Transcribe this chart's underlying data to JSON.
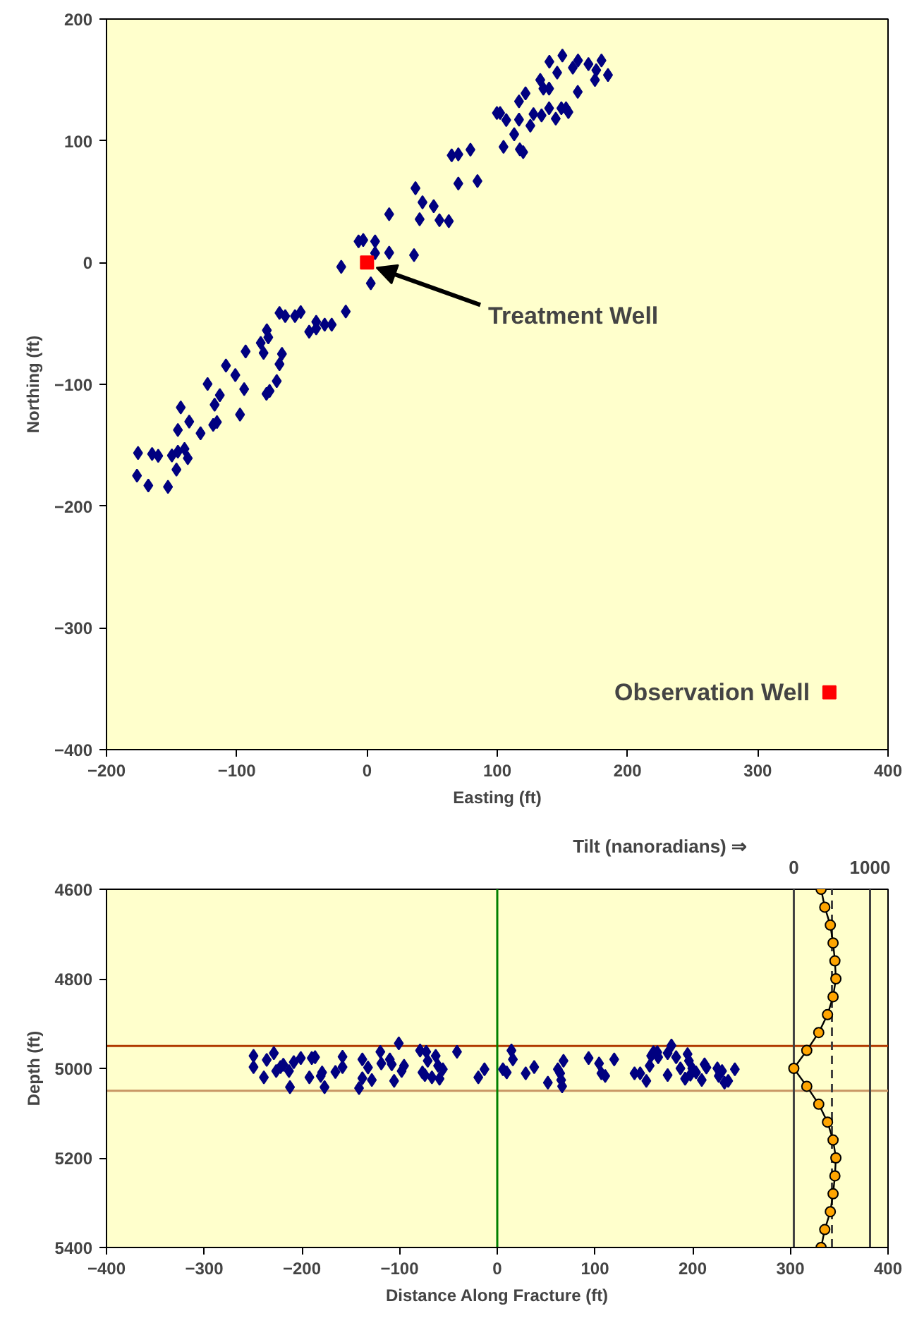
{
  "chart_data": [
    {
      "type": "scatter",
      "xlabel": "Easting (ft)",
      "ylabel": "Northing (ft)",
      "xlim": [
        -200,
        400
      ],
      "ylim": [
        -400,
        200
      ],
      "xticks": [
        -200,
        -100,
        0,
        100,
        200,
        300,
        400
      ],
      "yticks": [
        -400,
        -300,
        -200,
        -100,
        0,
        100,
        200
      ],
      "grid": false,
      "series": [
        {
          "color": "#000080",
          "marker": "diamond",
          "x": [
            -175.8,
            -176.6,
            -167.9,
            -165,
            -160.3,
            -152.8,
            -149.8,
            -146.3,
            -145.2,
            -140.1,
            -137.6,
            -145.2,
            -143,
            -136.5,
            -127.8,
            -122.4,
            -117,
            -118.1,
            -115.2,
            -113,
            -108.3,
            -101.1,
            -97.5,
            -94.3,
            -93.2,
            -79.4,
            -81.6,
            -76.9,
            -75.8,
            -69.3,
            -67.2,
            -65.3,
            -77.2,
            -74.8,
            -67.2,
            -62.8,
            -55.3,
            -50.9,
            -44.4,
            -39,
            -39,
            -32.5,
            -27.1,
            -16.3,
            -19.8,
            2.9,
            -6.5,
            -2.9,
            6.2,
            6.2,
            17,
            36.1,
            17,
            37.2,
            42.6,
            51.2,
            40.4,
            55.6,
            62.8,
            65,
            70.1,
            79.4,
            70.1,
            84.8,
            104.8,
            117.3,
            119.9,
            113,
            125.4,
            99.7,
            102.2,
            106.9,
            116.7,
            127.8,
            134,
            144.9,
            139.8,
            149.2,
            152.8,
            154.6,
            116.7,
            121.7,
            135.4,
            139.8,
            161.8,
            133,
            140,
            150,
            158,
            162,
            170,
            176,
            180,
            185,
            175,
            146
          ],
          "values": [
            -156.4,
            -175,
            -183.1,
            -157.2,
            -158.7,
            -184.2,
            -158.4,
            -170,
            -155.3,
            -153,
            -160.7,
            -137.5,
            -119,
            -130.6,
            -140.2,
            -99.7,
            -116.7,
            -133.3,
            -131,
            -108.9,
            -84.6,
            -92.4,
            -124.8,
            -103.9,
            -73,
            -74.2,
            -66,
            -55.6,
            -61.4,
            -97.3,
            -83.4,
            -75,
            -107.8,
            -105.4,
            -41.4,
            -44,
            -44,
            -40.6,
            -56.8,
            -54.1,
            -48.7,
            -51,
            -51,
            -40.2,
            -3.5,
            -17,
            17.4,
            18.5,
            17.4,
            7.8,
            8.1,
            6.1,
            39.7,
            61.1,
            49.5,
            46.3,
            35.6,
            34.8,
            34,
            88.1,
            88.9,
            92.7,
            64.9,
            66.9,
            95,
            93,
            90.7,
            105.4,
            112.4,
            122.8,
            122.8,
            117,
            117.4,
            122,
            120.9,
            118.2,
            126.7,
            126.7,
            126.7,
            123.6,
            132.4,
            139,
            142.9,
            142.9,
            140.2,
            150,
            165,
            170,
            160,
            166,
            163,
            158,
            166,
            154,
            150,
            156
          ]
        },
        {
          "name": "Treatment Well",
          "color": "#ff0000",
          "marker": "square",
          "x": [
            0
          ],
          "values": [
            0
          ]
        },
        {
          "name": "Observation Well",
          "color": "#ff0000",
          "marker": "square",
          "x": [
            355
          ],
          "values": [
            -353
          ]
        }
      ]
    },
    {
      "type": "scatter",
      "xlabel": "Distance Along Fracture (ft)",
      "ylabel": "Depth (ft)",
      "x2label": "Tilt (nanoradians) ⇒",
      "xlim": [
        -400,
        400
      ],
      "ylim": [
        5400,
        4600
      ],
      "xticks": [
        -400,
        -300,
        -200,
        -100,
        0,
        100,
        200,
        300,
        400
      ],
      "yticks": [
        4600,
        4800,
        5000,
        5200,
        5400
      ],
      "x2lim": [
        -9018,
        1236
      ],
      "x2ticks": [
        0,
        1000
      ],
      "grid": false,
      "series": [
        {
          "color": "#000080",
          "marker": "diamond",
          "x": [
            -249.5,
            -249.5,
            -238.9,
            -236,
            -228.7,
            -226.3,
            -221.9,
            -219,
            -213.2,
            -212.2,
            -208.3,
            -201.1,
            -192.3,
            -189.9,
            -186.5,
            -180.7,
            -179.3,
            -176.8,
            -165.7,
            -158.4,
            -158.4,
            -141.5,
            -138.1,
            -138.1,
            -132.3,
            -128.4,
            -119.7,
            -118.7,
            -110,
            -108,
            -105.6,
            -100.8,
            -97.9,
            -95.4,
            -79,
            -76.6,
            -74.1,
            -72.7,
            -71.2,
            -66.9,
            -63,
            -60.6,
            -59.1,
            -55.7,
            -41.2,
            -19.4,
            -13.1,
            5.8,
            9.7,
            14.5,
            16,
            29.1,
            37.8,
            51.8,
            62,
            64.4,
            67.8,
            65.4,
            66.4,
            93.5,
            104.2,
            106.6,
            110.5,
            119.7,
            140.5,
            146.3,
            152.6,
            156,
            157.5,
            159.9,
            164.7,
            163.8,
            174.4,
            178.3,
            183.1,
            174.4,
            187.5,
            194.8,
            196.2,
            192.3,
            197.7,
            199.6,
            203.5,
            209.3,
            212.2,
            214.1,
            225.3,
            226.7,
            230.1,
            232.6,
            236.4,
            243.2
          ],
          "values": [
            4972,
            4997,
            5020,
            4981,
            4966,
            5006,
            4997,
            4992,
            5006,
            5042,
            4986,
            4977,
            5020,
            4977,
            4975,
            5017,
            5009,
            5042,
            5008,
            4974,
            4997,
            5044,
            4980,
            5022,
            4998,
            5026,
            4963,
            4989,
            4980,
            4991,
            5028,
            4944,
            5006,
            4994,
            4960,
            5009,
            5015,
            4963,
            4983,
            5020,
            4972,
            4994,
            5023,
            5002,
            4963,
            5020,
            5002,
            5002,
            5009,
            4960,
            4980,
            5011,
            4997,
            5032,
            5002,
            5011,
            4983,
            5026,
            5040,
            4977,
            4989,
            5011,
            5017,
            4980,
            5011,
            5011,
            5028,
            4994,
            4972,
            4964,
            4975,
            4964,
            4966,
            4949,
            4975,
            5015,
            5000,
            4968,
            4983,
            5023,
            5014,
            5000,
            5009,
            5026,
            4991,
            4998,
            5000,
            5017,
            5006,
            5032,
            5028,
            5002
          ]
        },
        {
          "type": "line",
          "axis": "x2",
          "color": "#ffa500",
          "marker": "circle",
          "x": [
            358,
            406,
            479,
            515,
            539,
            552,
            515,
            442,
            327,
            170,
            0,
            170,
            327,
            442,
            515,
            552,
            539,
            515,
            479,
            406,
            358
          ],
          "values": [
            4600,
            4640,
            4680,
            4720,
            4760,
            4800,
            4840,
            4880,
            4920,
            4960,
            5000,
            5040,
            5080,
            5120,
            5160,
            5200,
            5240,
            5280,
            5320,
            5360,
            5400
          ]
        }
      ],
      "ref_lines": [
        {
          "axis": "y",
          "value": 4950,
          "color": "#b03a00"
        },
        {
          "axis": "y",
          "value": 5050,
          "color": "#c89664"
        },
        {
          "axis": "x",
          "value": 0,
          "color": "#008000"
        },
        {
          "axis": "x2",
          "value": 0,
          "color": "#404040"
        },
        {
          "axis": "x2",
          "value": 1000,
          "color": "#404040"
        },
        {
          "axis": "x2",
          "value": 500,
          "color": "#404040",
          "line_style": "dashed"
        }
      ]
    }
  ]
}
